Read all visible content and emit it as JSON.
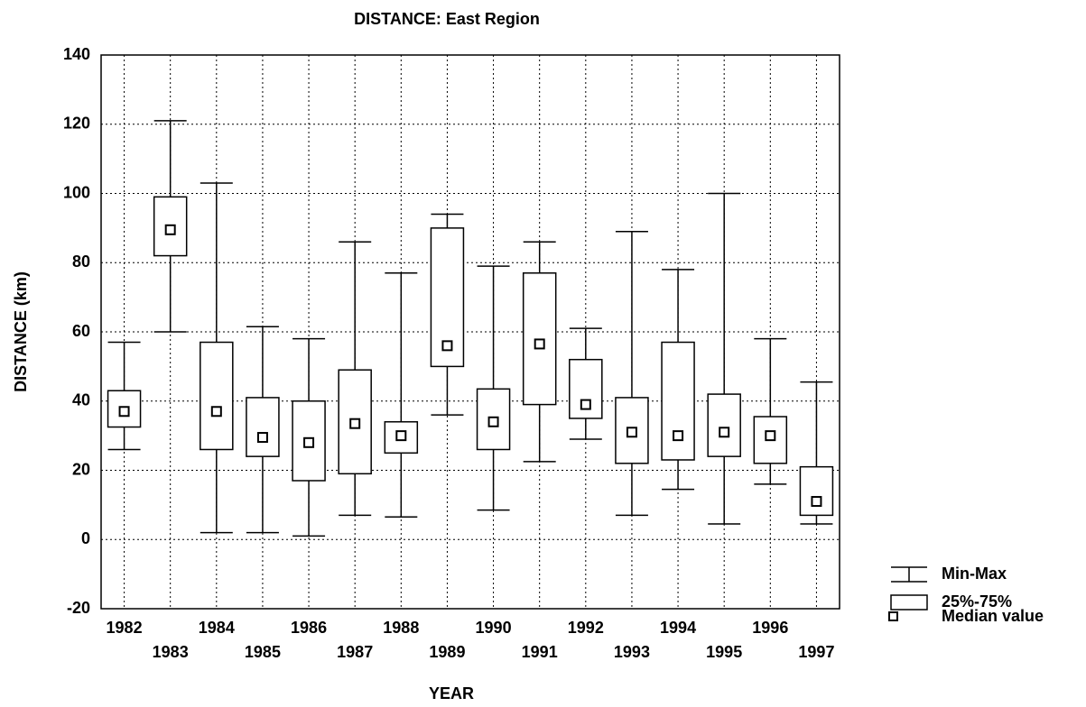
{
  "chart_data": {
    "type": "box",
    "title": "DISTANCE: East Region",
    "x_label": "YEAR",
    "y_label": "DISTANCE (km)",
    "categories": [
      "1982",
      "1983",
      "1984",
      "1985",
      "1986",
      "1987",
      "1988",
      "1989",
      "1990",
      "1991",
      "1992",
      "1993",
      "1994",
      "1995",
      "1996",
      "1997"
    ],
    "min": [
      26,
      60,
      2,
      2,
      1,
      7,
      6.5,
      36,
      8.5,
      22.5,
      29,
      7,
      14.5,
      4.5,
      16,
      4.5
    ],
    "q1": [
      32.5,
      82,
      26,
      24,
      17,
      19,
      25,
      50,
      26,
      39,
      35,
      22,
      23,
      24,
      22,
      7
    ],
    "median": [
      37,
      89.5,
      37,
      29.5,
      28,
      33.5,
      30,
      56,
      34,
      56.5,
      39,
      31,
      30,
      31,
      30,
      11
    ],
    "q3": [
      43,
      99,
      57,
      41,
      40,
      49,
      34,
      90,
      43.5,
      77,
      52,
      41,
      57,
      42,
      35.5,
      21
    ],
    "max": [
      57,
      121,
      103,
      61.5,
      58,
      86,
      77,
      94,
      79,
      86,
      61,
      89,
      78,
      100,
      58,
      45.5
    ],
    "ylim": [
      -20,
      140
    ],
    "yticks": [
      -20,
      0,
      20,
      40,
      60,
      80,
      100,
      120,
      140
    ],
    "grid": true,
    "legend": [
      "Min-Max",
      "25%-75%",
      "Median value"
    ],
    "color": "#000000"
  }
}
